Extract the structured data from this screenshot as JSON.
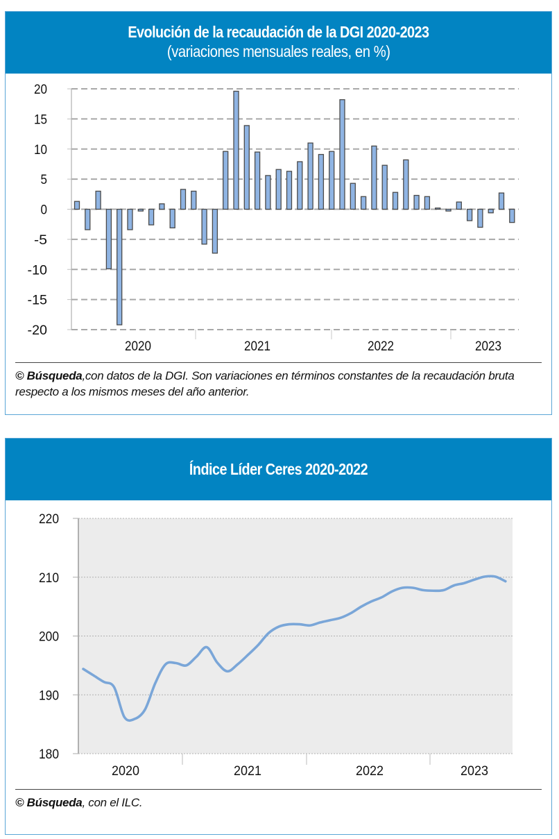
{
  "chart_data": [
    {
      "type": "bar",
      "title": "Evolución de la recaudación de la DGI 2020-2023",
      "subtitle": "(variaciones mensuales reales, en %)",
      "xlabel": "",
      "ylabel": "",
      "ylim": [
        -20,
        20
      ],
      "yticks": [
        20,
        15,
        10,
        5,
        0,
        -5,
        -10,
        -15,
        -20
      ],
      "grid": true,
      "year_labels": [
        "2020",
        "2021",
        "2022",
        "2023"
      ],
      "categories": [
        "2020-01",
        "2020-02",
        "2020-03",
        "2020-04",
        "2020-05",
        "2020-06",
        "2020-07",
        "2020-08",
        "2020-09",
        "2020-10",
        "2020-11",
        "2020-12",
        "2021-01",
        "2021-02",
        "2021-03",
        "2021-04",
        "2021-05",
        "2021-06",
        "2021-07",
        "2021-08",
        "2021-09",
        "2021-10",
        "2021-11",
        "2021-12",
        "2022-01",
        "2022-02",
        "2022-03",
        "2022-04",
        "2022-05",
        "2022-06",
        "2022-07",
        "2022-08",
        "2022-09",
        "2022-10",
        "2022-11",
        "2022-12",
        "2023-01",
        "2023-02",
        "2023-03",
        "2023-04",
        "2023-05",
        "2023-06"
      ],
      "values": [
        1.3,
        -3.4,
        3.0,
        -9.9,
        -19.2,
        -3.4,
        -0.3,
        -2.6,
        0.9,
        -3.1,
        3.3,
        3.0,
        -5.8,
        -7.3,
        9.6,
        19.6,
        13.9,
        9.5,
        5.6,
        6.6,
        6.3,
        7.9,
        11.0,
        9.1,
        9.6,
        18.2,
        4.3,
        2.1,
        10.5,
        7.3,
        2.8,
        8.2,
        2.3,
        2.1,
        0.2,
        -0.3,
        1.2,
        -1.9,
        -3.0,
        -0.6,
        2.7,
        -2.2
      ],
      "bar_color": "#8fb4e3",
      "bar_edge_color": "#4a4a4a",
      "footer": {
        "brand": "© Búsqueda",
        "text": ",con datos de la DGI. Son variaciones en términos constantes de la recaudación bruta respecto a los mismos meses del año anterior."
      }
    },
    {
      "type": "line",
      "title": "Índice Líder Ceres 2020-2022",
      "xlabel": "",
      "ylabel": "",
      "ylim": [
        180,
        220
      ],
      "yticks": [
        220,
        210,
        200,
        190,
        180
      ],
      "grid": true,
      "year_labels": [
        "2020",
        "2021",
        "2022",
        "2023"
      ],
      "x_start": "2020-01",
      "values": [
        194.4,
        193.3,
        192.2,
        191.3,
        186.2,
        185.9,
        187.5,
        192.0,
        195.2,
        195.4,
        195.0,
        196.5,
        198.1,
        195.5,
        194.0,
        195.2,
        196.8,
        198.5,
        200.5,
        201.6,
        202.0,
        202.0,
        201.8,
        202.3,
        202.7,
        203.1,
        203.9,
        205.0,
        205.9,
        206.6,
        207.6,
        208.2,
        208.2,
        207.8,
        207.7,
        207.8,
        208.6,
        209.0,
        209.6,
        210.1,
        210.1,
        209.3
      ],
      "line_color": "#7aa6d8",
      "plot_bg": "#ececec",
      "footer": {
        "brand": "© Búsqueda",
        "text": ", con el ILC."
      }
    }
  ]
}
